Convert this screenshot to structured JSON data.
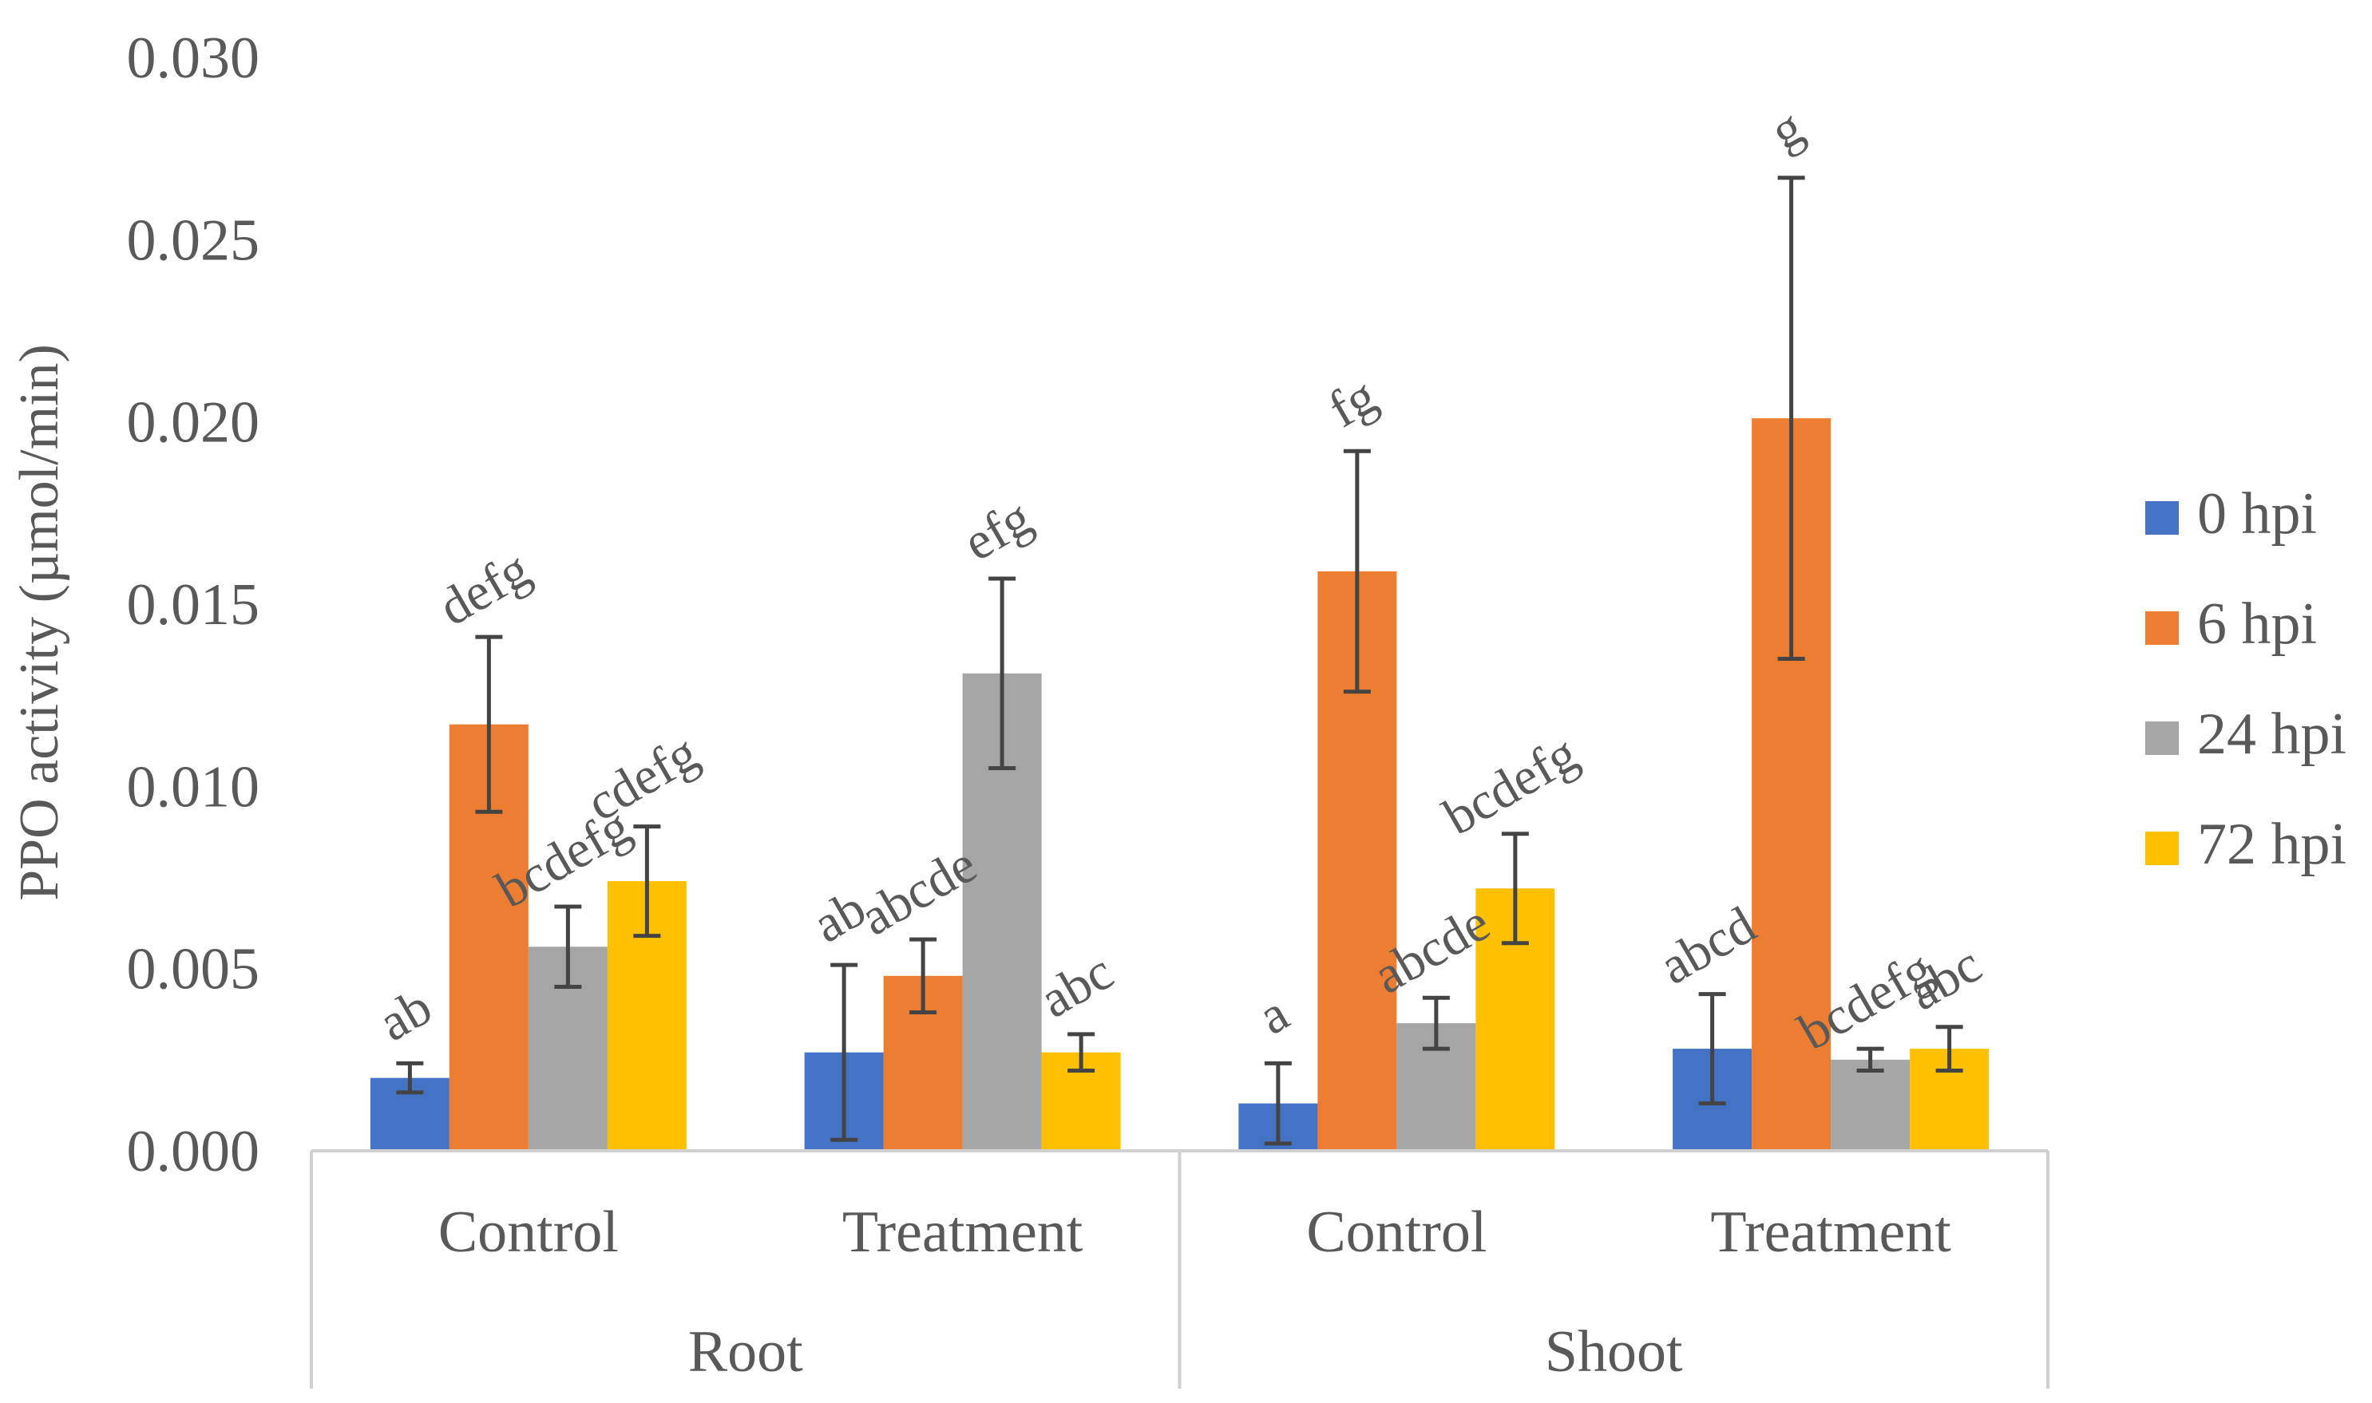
{
  "chart_data": {
    "type": "bar",
    "ylabel": "PPO activity (µmol/min)",
    "ylim": [
      0,
      0.03
    ],
    "y_ticks": [
      "0.000",
      "0.005",
      "0.010",
      "0.015",
      "0.020",
      "0.025",
      "0.030"
    ],
    "y_tick_values": [
      0,
      0.005,
      0.01,
      0.015,
      0.02,
      0.025,
      0.03
    ],
    "categories": [
      "Control",
      "Treatment",
      "Control",
      "Treatment"
    ],
    "groups": [
      {
        "label": "Root",
        "span": [
          0,
          1
        ]
      },
      {
        "label": "Shoot",
        "span": [
          2,
          3
        ]
      }
    ],
    "legend_position": "right",
    "series": [
      {
        "name": "0 hpi",
        "color": "#4472C4",
        "values": [
          0.002,
          0.0027,
          0.0013,
          0.0028
        ],
        "errors": [
          0.0004,
          0.0024,
          0.0011,
          0.0015
        ],
        "labels": [
          "ab",
          "ab",
          "a",
          "abcd"
        ]
      },
      {
        "name": "6 hpi",
        "color": "#ED7D31",
        "values": [
          0.0117,
          0.0048,
          0.0159,
          0.0201
        ],
        "errors": [
          0.0024,
          0.001,
          0.0033,
          0.0066
        ],
        "labels": [
          "defg",
          "abcde",
          "fg",
          "g"
        ]
      },
      {
        "name": "24 hpi",
        "color": "#A5A5A5",
        "values": [
          0.0056,
          0.0131,
          0.0035,
          0.0025
        ],
        "errors": [
          0.0011,
          0.0026,
          0.0007,
          0.0003
        ],
        "labels": [
          "bcdefg",
          "efg",
          "abcde",
          "bcdefg"
        ]
      },
      {
        "name": "72 hpi",
        "color": "#FFC000",
        "values": [
          0.0074,
          0.0027,
          0.0072,
          0.0028
        ],
        "errors": [
          0.0015,
          0.0005,
          0.0015,
          0.0006
        ],
        "labels": [
          "cdefg",
          "abc",
          "bcdefg",
          "abc"
        ]
      }
    ]
  }
}
